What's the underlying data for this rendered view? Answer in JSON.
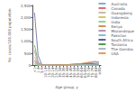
{
  "chart_data": {
    "type": "line",
    "xlabel": "Age group, y",
    "ylabel": "No. cases/100,000 population",
    "categories": [
      "<1",
      "1-4",
      "5-9",
      "10-14",
      "15-19",
      "20-24",
      "25-29",
      "30-34",
      "35-39",
      "40-44",
      "45-49",
      "50-54",
      "55-59",
      "60-64",
      "65-69",
      "70-74",
      "75-79",
      "80-84",
      "≥85"
    ],
    "series": [
      {
        "name": "Australia",
        "color": "#7fb2d8",
        "values": [
          160,
          50,
          12,
          6,
          8,
          12,
          16,
          18,
          20,
          24,
          28,
          34,
          42,
          55,
          75,
          95,
          115,
          125,
          105
        ]
      },
      {
        "name": "Canada",
        "color": "#e07070",
        "values": [
          200,
          70,
          18,
          8,
          10,
          14,
          18,
          20,
          24,
          28,
          34,
          42,
          52,
          68,
          90,
          118,
          142,
          155,
          138
        ]
      },
      {
        "name": "Guangdong",
        "color": "#c0c0b0",
        "values": [
          90,
          22,
          6,
          4,
          4,
          4,
          5,
          5,
          6,
          7,
          8,
          10,
          12,
          15,
          18,
          20,
          22,
          20,
          18
        ]
      },
      {
        "name": "Indonesia",
        "color": "#d4c870",
        "values": [
          40,
          10,
          3,
          2,
          2,
          2,
          2,
          2,
          2,
          2,
          2,
          2,
          2,
          2,
          2,
          2,
          2,
          2,
          2
        ]
      },
      {
        "name": "India",
        "color": "#90d890",
        "values": [
          60,
          18,
          5,
          3,
          3,
          3,
          3,
          3,
          3,
          3,
          3,
          3,
          4,
          4,
          4,
          4,
          4,
          4,
          4
        ]
      },
      {
        "name": "Kenya",
        "color": "#d8905c",
        "values": [
          580,
          100,
          15,
          5,
          5,
          8,
          10,
          14,
          20,
          30,
          38,
          45,
          55,
          68,
          80,
          85,
          75,
          60,
          50
        ]
      },
      {
        "name": "Mozambique",
        "color": "#b898b8",
        "values": [
          350,
          60,
          10,
          4,
          4,
          6,
          8,
          12,
          16,
          22,
          28,
          35,
          42,
          52,
          60,
          62,
          55,
          45,
          38
        ]
      },
      {
        "name": "Pakistan",
        "color": "#90b8d8",
        "values": [
          120,
          35,
          8,
          4,
          4,
          5,
          7,
          9,
          12,
          15,
          18,
          22,
          26,
          30,
          32,
          30,
          26,
          22,
          18
        ]
      },
      {
        "name": "South Africa",
        "color": "#6060a0",
        "values": [
          2200,
          420,
          45,
          10,
          8,
          10,
          14,
          18,
          24,
          32,
          40,
          50,
          60,
          72,
          80,
          82,
          72,
          60,
          50
        ]
      },
      {
        "name": "Tanzania",
        "color": "#50a050",
        "values": [
          850,
          160,
          20,
          6,
          5,
          7,
          9,
          12,
          16,
          20,
          24,
          28,
          32,
          36,
          38,
          36,
          30,
          25,
          20
        ]
      },
      {
        "name": "The Gambia",
        "color": "#b0b8c8",
        "values": [
          650,
          120,
          15,
          5,
          4,
          5,
          7,
          9,
          12,
          16,
          20,
          24,
          28,
          32,
          34,
          32,
          28,
          22,
          18
        ]
      },
      {
        "name": "USA",
        "color": "#e0a060",
        "values": [
          230,
          80,
          25,
          12,
          14,
          18,
          22,
          26,
          30,
          36,
          44,
          54,
          66,
          82,
          105,
          132,
          158,
          170,
          148
        ]
      }
    ],
    "ylim": [
      0,
      2500
    ],
    "yticks": [
      0,
      500,
      {
        "value": 1000,
        "label": "1,000"
      },
      {
        "value": 1500,
        "label": "1,500"
      },
      {
        "value": 2000,
        "label": "2,000"
      },
      {
        "value": 2500,
        "label": "2,500"
      }
    ],
    "grid": false,
    "legend": "right"
  }
}
